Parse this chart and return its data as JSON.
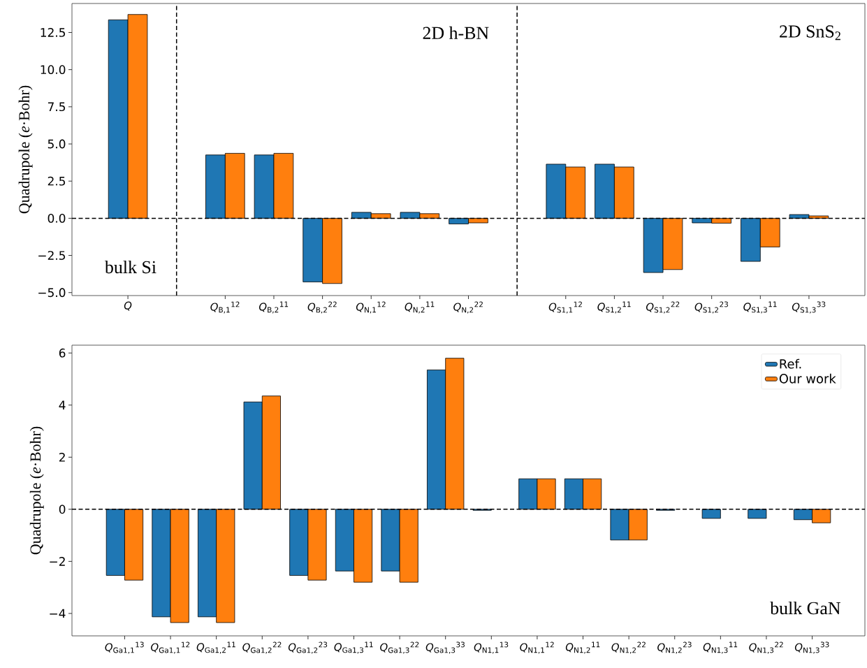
{
  "chart_data": [
    {
      "type": "bar",
      "ylabel": "Quadrupole (*e*·Bohr)",
      "categories": [
        "*Q*",
        null,
        "*Q*$_{B,1}$$^{12}$",
        "*Q*$_{B,2}$$^{11}$",
        "*Q*$_{B,2}$$^{22}$",
        "*Q*$_{N,1}$$^{12}$",
        "*Q*$_{N,2}$$^{11}$",
        "*Q*$_{N,2}$$^{22}$",
        null,
        "*Q*$_{S1,1}$$^{12}$",
        "*Q*$_{S1,2}$$^{11}$",
        "*Q*$_{S1,2}$$^{22}$",
        "*Q*$_{S1,2}$$^{23}$",
        "*Q*$_{S1,3}$$^{11}$",
        "*Q*$_{S1,3}$$^{33}$"
      ],
      "series": [
        {
          "color": "#1f77b4",
          "values": [
            13.35,
            null,
            4.26,
            4.26,
            -4.28,
            0.4,
            0.4,
            -0.38,
            null,
            3.64,
            3.64,
            -3.65,
            -0.31,
            -2.9,
            0.25
          ]
        },
        {
          "color": "#ff7f0e",
          "values": [
            13.71,
            null,
            4.37,
            4.37,
            -4.39,
            0.31,
            0.31,
            -0.31,
            null,
            3.45,
            3.45,
            -3.45,
            -0.33,
            -1.93,
            0.16
          ]
        }
      ],
      "ylim": [
        -5.2,
        14.45
      ],
      "yticks": [
        {
          "value": -5,
          "label": "−5.0"
        },
        {
          "value": -2.5,
          "label": "−2.5"
        },
        {
          "value": 0,
          "label": "0.0"
        },
        {
          "value": 2.5,
          "label": "2.5"
        },
        {
          "value": 5,
          "label": "5.0"
        },
        {
          "value": 7.5,
          "label": "7.5"
        },
        {
          "value": 10,
          "label": "10.0"
        },
        {
          "value": 12.5,
          "label": "12.5"
        }
      ],
      "ref_lines": [
        {
          "axis": "y",
          "value": 0,
          "line_style": "dashed"
        }
      ],
      "annotations": [
        "2D h-BN",
        "2D SnS$_{2}$",
        "bulk Si"
      ]
    },
    {
      "type": "bar",
      "ylabel": "Quadrupole (*e*·Bohr)",
      "categories": [
        "*Q*$_{Ga1,1}$$^{13}$",
        "*Q*$_{Ga1,1}$$^{12}$",
        "*Q*$_{Ga1,2}$$^{11}$",
        "*Q*$_{Ga1,2}$$^{22}$",
        "*Q*$_{Ga1,2}$$^{23}$",
        "*Q*$_{Ga1,3}$$^{11}$",
        "*Q*$_{Ga1,3}$$^{22}$",
        "*Q*$_{Ga1,3}$$^{33}$",
        "*Q*$_{N1,1}$$^{13}$",
        "*Q*$_{N1,1}$$^{12}$",
        "*Q*$_{N1,2}$$^{11}$",
        "*Q*$_{N1,2}$$^{22}$",
        "*Q*$_{N1,2}$$^{23}$",
        "*Q*$_{N1,3}$$^{11}$",
        "*Q*$_{N1,3}$$^{22}$",
        "*Q*$_{N1,3}$$^{33}$"
      ],
      "series": [
        {
          "name": "Ref.",
          "color": "#1f77b4",
          "values": [
            -2.54,
            -4.13,
            -4.13,
            4.12,
            -2.54,
            -2.37,
            -2.37,
            5.35,
            -0.04,
            1.17,
            1.17,
            -1.18,
            -0.04,
            -0.35,
            -0.35,
            -0.4
          ]
        },
        {
          "name": "Our work",
          "color": "#ff7f0e",
          "values": [
            -2.72,
            -4.35,
            -4.35,
            4.35,
            -2.72,
            -2.8,
            -2.8,
            5.8,
            null,
            1.17,
            1.17,
            -1.18,
            null,
            null,
            null,
            -0.52
          ]
        }
      ],
      "ylim": [
        -4.86,
        6.3
      ],
      "yticks": [
        {
          "value": -4,
          "label": "−4"
        },
        {
          "value": -2,
          "label": "−2"
        },
        {
          "value": 0,
          "label": "0"
        },
        {
          "value": 2,
          "label": "2"
        },
        {
          "value": 4,
          "label": "4"
        },
        {
          "value": 6,
          "label": "6"
        }
      ],
      "ref_lines": [
        {
          "axis": "y",
          "value": 0,
          "line_style": "dashed"
        }
      ],
      "legend": "top right",
      "annotations": [
        "bulk GaN"
      ]
    }
  ]
}
